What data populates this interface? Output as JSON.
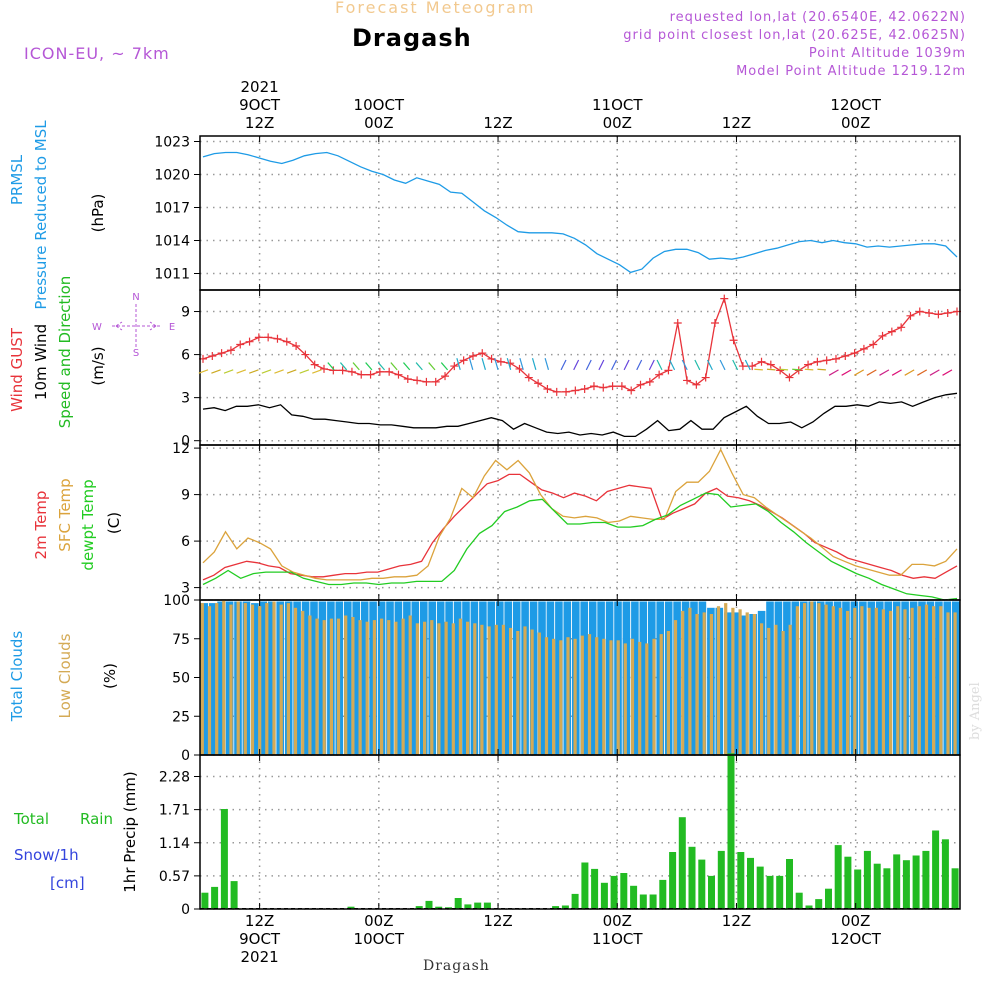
{
  "header": {
    "top_title": "Forecast Meteogram",
    "location": "Dragash",
    "model": "ICON-EU, ~ 7km",
    "info_lines": [
      "requested lon,lat (20.6540E, 42.0622N)",
      "grid point closest lon,lat (20.625E, 42.0625N)",
      "Point Altitude 1039m",
      "Model Point Altitude 1219.12m"
    ],
    "credit": "by Angel",
    "bottom_label": "Dragash"
  },
  "colors": {
    "pressure": "#1e9be6",
    "gust": "#e8333a",
    "wind10m": "#000000",
    "dir_label": "#22bb22",
    "temp2m": "#e8333a",
    "sfc_temp": "#dba33c",
    "dewpoint": "#22cc22",
    "total_clouds": "#1e9be6",
    "low_clouds": "#d4aa55",
    "rain": "#22bb22",
    "snow": "#3344dd",
    "info": "#b557d6",
    "grid": "#999999"
  },
  "chart_data": [
    {
      "type": "line",
      "name": "pressure",
      "ylabel_lines": [
        "PRMSL",
        "Pressure Reduced to MSL"
      ],
      "unit": "(hPa)",
      "ylim": [
        1009.5,
        1023.5
      ],
      "yticks": [
        1011,
        1014,
        1017,
        1020,
        1023
      ],
      "grid": true,
      "series": [
        {
          "name": "PRMSL",
          "values": [
            1021.6,
            1021.9,
            1022.0,
            1022.0,
            1021.8,
            1021.5,
            1021.2,
            1021.0,
            1021.3,
            1021.7,
            1021.9,
            1022.0,
            1021.7,
            1021.2,
            1020.7,
            1020.3,
            1020.0,
            1019.5,
            1019.2,
            1019.7,
            1019.4,
            1019.1,
            1018.4,
            1018.3,
            1017.5,
            1016.7,
            1016.1,
            1015.4,
            1014.8,
            1014.7,
            1014.7,
            1014.7,
            1014.6,
            1014.2,
            1013.6,
            1012.8,
            1012.3,
            1011.8,
            1011.1,
            1011.4,
            1012.4,
            1013.0,
            1013.2,
            1013.2,
            1012.9,
            1012.3,
            1012.4,
            1012.3,
            1012.5,
            1012.8,
            1013.1,
            1013.3,
            1013.6,
            1013.9,
            1014.0,
            1013.8,
            1014.0,
            1013.8,
            1013.7,
            1013.4,
            1013.5,
            1013.4,
            1013.5,
            1013.6,
            1013.7,
            1013.7,
            1013.5,
            1012.5
          ]
        }
      ]
    },
    {
      "type": "line",
      "name": "wind",
      "ylabel_lines": [
        "Wind GUST",
        "10m Wind",
        "Speed and Direction"
      ],
      "unit": "(m/s)",
      "compass": [
        "N",
        "S",
        "W",
        "E"
      ],
      "ylim": [
        -0.3,
        10.5
      ],
      "yticks": [
        0,
        3,
        6,
        9
      ],
      "grid": true,
      "series": [
        {
          "name": "Wind GUST",
          "values": [
            5.7,
            5.9,
            6.1,
            6.3,
            6.7,
            6.9,
            7.2,
            7.2,
            7.1,
            6.9,
            6.6,
            6.0,
            5.3,
            5.0,
            4.9,
            4.9,
            4.8,
            4.6,
            4.6,
            4.8,
            4.8,
            4.6,
            4.3,
            4.2,
            4.1,
            4.1,
            4.5,
            5.2,
            5.6,
            5.9,
            6.1,
            5.7,
            5.5,
            5.4,
            5.0,
            4.4,
            4.0,
            3.6,
            3.4,
            3.4,
            3.5,
            3.6,
            3.8,
            3.7,
            3.8,
            3.8,
            3.5,
            3.9,
            4.1,
            4.6,
            4.9,
            8.2,
            4.2,
            3.9,
            4.4,
            8.2,
            9.9,
            7.0,
            5.2,
            5.2,
            5.5,
            5.3,
            4.9,
            4.4,
            4.9,
            5.3,
            5.5,
            5.6,
            5.7,
            5.9,
            6.1,
            6.4,
            6.7,
            7.3,
            7.6,
            7.9,
            8.7,
            9.0,
            8.9,
            8.8,
            8.9,
            9.0
          ]
        },
        {
          "name": "10m Wind",
          "values": [
            2.2,
            2.3,
            2.1,
            2.4,
            2.4,
            2.5,
            2.3,
            2.5,
            1.8,
            1.7,
            1.5,
            1.5,
            1.4,
            1.3,
            1.2,
            1.2,
            1.1,
            1.1,
            1.0,
            0.9,
            0.9,
            0.9,
            1.0,
            1.0,
            1.2,
            1.4,
            1.6,
            1.4,
            0.8,
            1.2,
            0.9,
            0.6,
            0.5,
            0.6,
            0.4,
            0.5,
            0.4,
            0.6,
            0.3,
            0.3,
            0.8,
            1.4,
            0.7,
            0.8,
            1.4,
            0.8,
            0.8,
            1.6,
            2.0,
            2.4,
            1.7,
            1.2,
            1.2,
            1.3,
            0.9,
            1.3,
            1.9,
            2.4,
            2.4,
            2.5,
            2.4,
            2.7,
            2.6,
            2.7,
            2.4,
            2.7,
            3.0,
            3.2,
            3.3
          ]
        }
      ]
    },
    {
      "type": "line",
      "name": "temperature",
      "ylabel_lines": [
        "2m Temp",
        "SFC Temp",
        "dewpt Temp"
      ],
      "unit": "(C)",
      "ylim": [
        2.2,
        12.2
      ],
      "yticks": [
        3,
        6,
        9,
        12
      ],
      "grid": true,
      "series": [
        {
          "name": "2m Temp",
          "values": [
            3.5,
            3.8,
            4.3,
            4.5,
            4.7,
            4.6,
            4.4,
            4.3,
            3.9,
            3.8,
            3.7,
            3.7,
            3.8,
            3.9,
            3.9,
            4.0,
            4.0,
            4.2,
            4.4,
            4.5,
            4.7,
            5.9,
            6.8,
            7.6,
            8.3,
            9.0,
            9.7,
            9.9,
            10.3,
            10.3,
            9.8,
            9.3,
            9.1,
            8.8,
            9.1,
            8.9,
            8.6,
            9.2,
            9.4,
            9.6,
            9.5,
            9.4,
            7.4,
            7.8,
            8.1,
            8.4,
            9.1,
            9.4,
            8.9,
            8.8,
            8.6,
            8.3,
            7.9,
            7.5,
            7.0,
            6.5,
            5.9,
            5.6,
            5.3,
            4.9,
            4.7,
            4.5,
            4.3,
            4.1,
            3.8,
            3.6,
            3.7,
            3.6,
            4.0,
            4.4
          ]
        },
        {
          "name": "SFC Temp",
          "values": [
            4.6,
            5.3,
            6.6,
            5.5,
            6.2,
            5.9,
            5.5,
            4.4,
            4.0,
            3.8,
            3.6,
            3.5,
            3.5,
            3.5,
            3.5,
            3.6,
            3.6,
            3.7,
            3.7,
            3.8,
            4.4,
            6.3,
            7.5,
            9.4,
            8.8,
            10.2,
            11.2,
            10.6,
            11.2,
            10.4,
            9.0,
            8.1,
            7.6,
            7.5,
            7.6,
            7.5,
            7.2,
            7.3,
            7.6,
            7.5,
            7.4,
            7.4,
            9.2,
            9.8,
            9.8,
            10.5,
            11.9,
            10.4,
            9.0,
            8.8,
            8.2,
            7.7,
            7.2,
            6.7,
            6.2,
            5.6,
            5.0,
            4.7,
            4.4,
            4.2,
            4.0,
            3.8,
            3.8,
            4.5,
            4.5,
            4.4,
            4.7,
            5.5
          ]
        },
        {
          "name": "dewpt Temp",
          "values": [
            3.2,
            3.6,
            4.1,
            3.6,
            3.9,
            4.0,
            4.0,
            4.0,
            3.6,
            3.4,
            3.2,
            3.2,
            3.3,
            3.3,
            3.2,
            3.3,
            3.3,
            3.4,
            3.4,
            3.4,
            4.1,
            5.5,
            6.5,
            7.0,
            7.9,
            8.2,
            8.6,
            8.7,
            7.9,
            7.1,
            7.1,
            7.2,
            7.2,
            6.9,
            6.9,
            7.0,
            7.4,
            7.7,
            8.3,
            8.7,
            9.1,
            9.0,
            8.2,
            8.3,
            8.4,
            7.9,
            7.2,
            6.6,
            5.9,
            5.3,
            4.7,
            4.3,
            3.9,
            3.6,
            3.2,
            2.9,
            2.6,
            2.5,
            2.4,
            2.2,
            2.3
          ]
        }
      ]
    },
    {
      "type": "bar",
      "name": "clouds",
      "ylabel_lines": [
        "Total Clouds",
        "Low Clouds"
      ],
      "unit": "(%)",
      "ylim": [
        0,
        100
      ],
      "yticks": [
        0,
        25,
        50,
        75,
        100
      ],
      "grid": true,
      "series": [
        {
          "name": "Total Clouds",
          "values": [
            98,
            98,
            99,
            99,
            99,
            99,
            98,
            99,
            99,
            99,
            99,
            99,
            99,
            99,
            99,
            99,
            99,
            99,
            99,
            99,
            99,
            99,
            99,
            99,
            99,
            99,
            99,
            99,
            99,
            99,
            99,
            99,
            99,
            99,
            99,
            99,
            99,
            99,
            99,
            99,
            99,
            99,
            99,
            99,
            99,
            99,
            99,
            99,
            99,
            99,
            99,
            99,
            99,
            99,
            99,
            99,
            99,
            99,
            99,
            99,
            95,
            95,
            92,
            92,
            90,
            91,
            93,
            99,
            99,
            99,
            99,
            99,
            99,
            99,
            99,
            99,
            99,
            99,
            99,
            99,
            99,
            99,
            99,
            99,
            99,
            99,
            99,
            99,
            99,
            99
          ]
        },
        {
          "name": "Low Clouds",
          "values": [
            98,
            96,
            98,
            100,
            97,
            99,
            98,
            97,
            96,
            98,
            99,
            97,
            98,
            95,
            93,
            90,
            88,
            87,
            88,
            88,
            90,
            89,
            87,
            86,
            87,
            88,
            87,
            86,
            88,
            90,
            85,
            86,
            87,
            85,
            86,
            85,
            88,
            86,
            85,
            84,
            83,
            84,
            84,
            82,
            80,
            83,
            81,
            79,
            76,
            75,
            74,
            76,
            75,
            77,
            78,
            76,
            75,
            74,
            74,
            72,
            75,
            73,
            72,
            75,
            78,
            80,
            87,
            93,
            95,
            91,
            92,
            91,
            96,
            98,
            95,
            94,
            92,
            91,
            85,
            82,
            84,
            80,
            84,
            96,
            98,
            99,
            98,
            97,
            96,
            95,
            93,
            95,
            96,
            95,
            95,
            94,
            93,
            96,
            94,
            95,
            96,
            97,
            96,
            96,
            92,
            92
          ]
        }
      ]
    },
    {
      "type": "bar",
      "name": "precipitation",
      "ylabel_lines": [
        "Total Rain",
        "Snow/1h",
        "[cm]"
      ],
      "unit": "1hr Precip (mm)",
      "ylim": [
        0,
        2.65
      ],
      "yticks": [
        0,
        0.57,
        1.14,
        1.71,
        2.28
      ],
      "ytick_labels": [
        "0",
        "0.57",
        "1.14",
        "1.71",
        "2.28"
      ],
      "grid": true,
      "series": [
        {
          "name": "Total Rain",
          "values": [
            0.28,
            0.38,
            1.72,
            0.48,
            0,
            0,
            0,
            0,
            0,
            0,
            0,
            0,
            0,
            0,
            0,
            0.04,
            0,
            0,
            0,
            0,
            0,
            0,
            0.05,
            0.14,
            0.04,
            0.03,
            0.19,
            0.08,
            0.11,
            0.11,
            0,
            0,
            0,
            0,
            0,
            0,
            0.05,
            0.06,
            0.26,
            0.8,
            0.69,
            0.45,
            0.57,
            0.62,
            0.4,
            0.25,
            0.25,
            0.5,
            0.98,
            1.58,
            1.07,
            0.85,
            0.57,
            1.0,
            2.68,
            0.98,
            0.88,
            0.73,
            0.57,
            0.57,
            0.86,
            0.28,
            0.06,
            0.17,
            0.35,
            1.1,
            0.9,
            0.68,
            1.0,
            0.78,
            0.7,
            0.94,
            0.84,
            0.92,
            1.0,
            1.35,
            1.2,
            0.7
          ]
        }
      ]
    }
  ],
  "time_axis": {
    "top_labels": [
      {
        "lines": [
          "2021",
          "9OCT",
          "12Z"
        ]
      },
      {
        "lines": [
          "10OCT",
          "00Z"
        ]
      },
      {
        "lines": [
          "12Z"
        ]
      },
      {
        "lines": [
          "11OCT",
          "00Z"
        ]
      },
      {
        "lines": [
          "12Z"
        ]
      },
      {
        "lines": [
          "12OCT",
          "00Z"
        ]
      }
    ],
    "bottom_labels": [
      {
        "lines": [
          "12Z",
          "9OCT",
          "2021"
        ]
      },
      {
        "lines": [
          "00Z",
          "10OCT"
        ]
      },
      {
        "lines": [
          "12Z"
        ]
      },
      {
        "lines": [
          "00Z",
          "11OCT"
        ]
      },
      {
        "lines": [
          "12Z"
        ]
      },
      {
        "lines": [
          "00Z",
          "12OCT"
        ]
      }
    ],
    "tick_hours": [
      0,
      12,
      24,
      36,
      48,
      60
    ],
    "hours_span": [
      -6,
      70.5
    ]
  }
}
